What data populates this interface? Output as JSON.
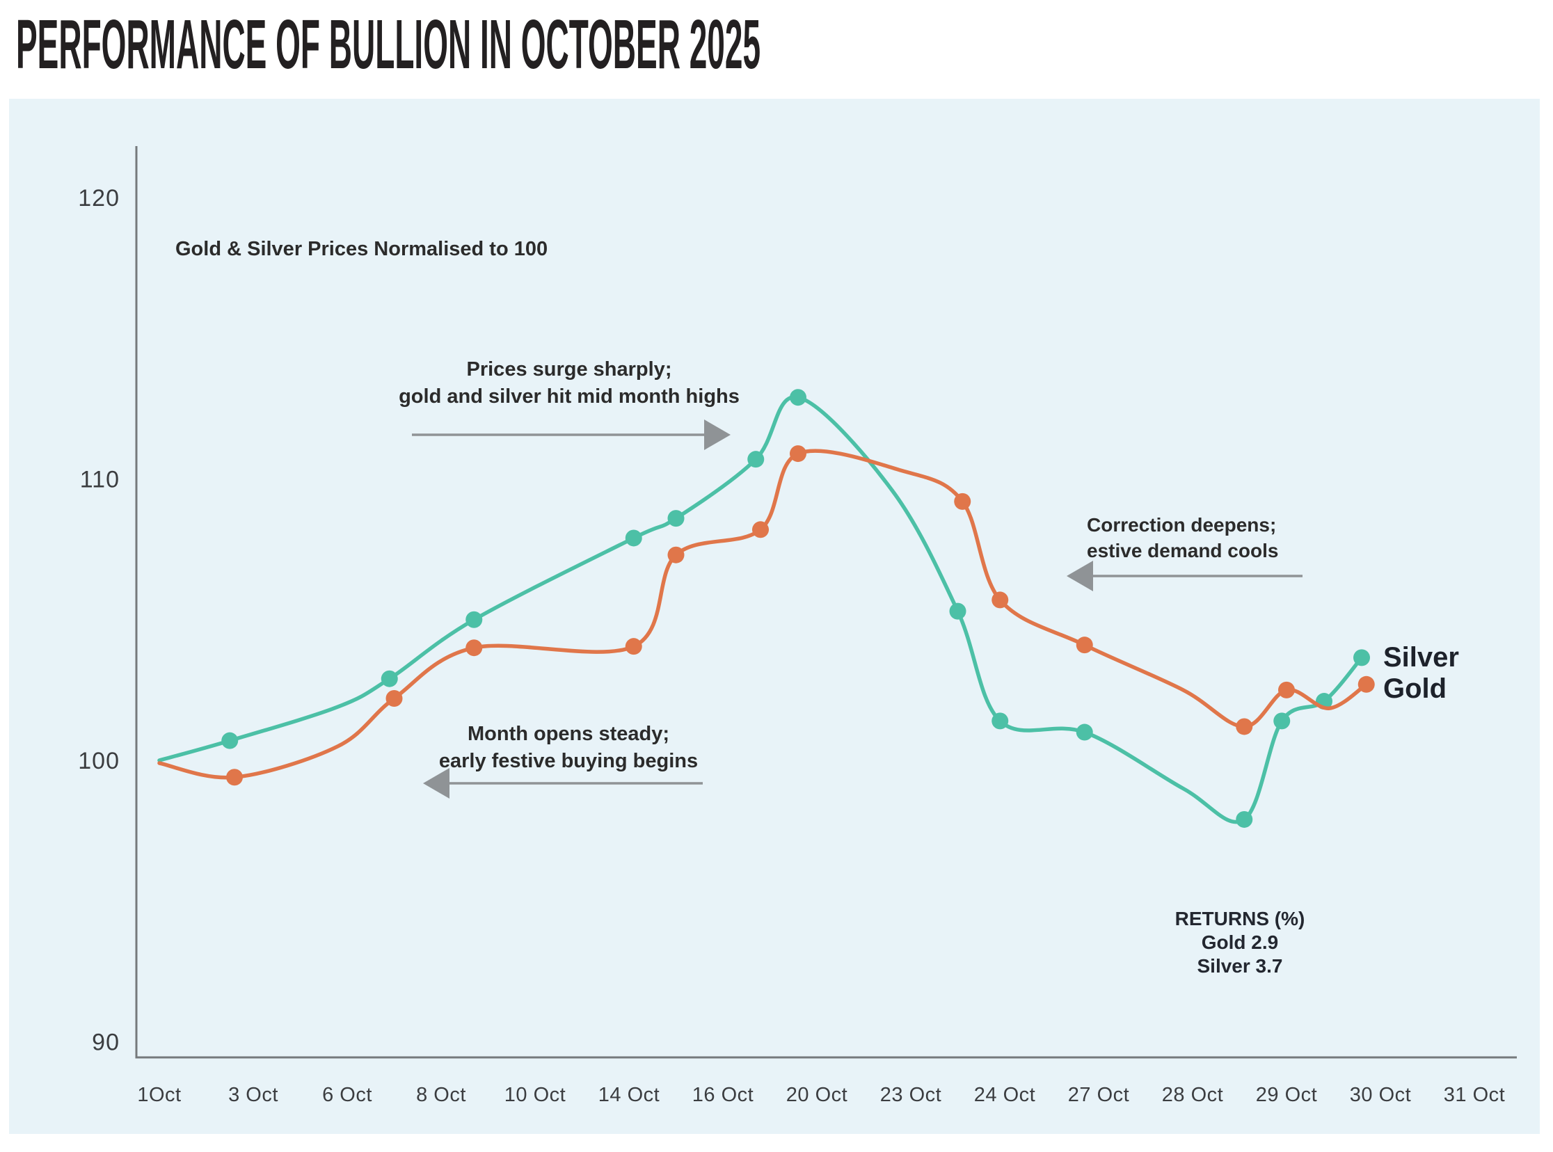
{
  "title": "PERFORMANCE OF BULLION IN OCTOBER 2025",
  "subtitle": "Gold & Silver Prices Normalised to 100",
  "colors": {
    "panel_bg": "#e8f3f8",
    "silver": "#4cc0a6",
    "gold": "#e0764a",
    "axis": "#75797c",
    "arrow": "#8f9396",
    "tick_text": "#3b3d40",
    "title_text": "#232021",
    "annotation_text": "#2b2b2b"
  },
  "annotations": {
    "surge": {
      "line1": "Prices surge sharply;",
      "line2": "gold and silver hit mid month highs",
      "arrow_direction": "right"
    },
    "month_open": {
      "line1": "Month opens steady;",
      "line2": "early festive buying begins",
      "arrow_direction": "left"
    },
    "correction": {
      "line1": "Correction deepens;",
      "line2": "estive demand cools",
      "arrow_direction": "left"
    }
  },
  "returns": {
    "heading": "RETURNS (%)",
    "gold_line": "Gold 2.9",
    "silver_line": "Silver 3.7"
  },
  "series_labels": {
    "silver": "Silver",
    "gold": "Gold"
  },
  "chart_data": {
    "type": "line",
    "title": "Gold & Silver Prices Normalised to 100",
    "xlabel": "",
    "ylabel": "",
    "x_tick_labels": [
      "1Oct",
      "3 Oct",
      "6 Oct",
      "8 Oct",
      "10 Oct",
      "14 Oct",
      "16 Oct",
      "20 Oct",
      "23 Oct",
      "24 Oct",
      "27 Oct",
      "28 Oct",
      "29 Oct",
      "30 Oct",
      "31 Oct"
    ],
    "y_ticks": [
      90,
      100,
      110,
      120
    ],
    "ylim": [
      88.5,
      122
    ],
    "grid": false,
    "legend_position": "right-end-of-line",
    "x_unit": "tick index: 0 = 1Oct ... 14 = 31 Oct (points may fall between ticks)",
    "point_format": "[x_index, value, marker_visible_0_or_1]",
    "series": [
      {
        "name": "Silver",
        "color": "#4cc0a6",
        "points": [
          [
            0,
            100.0,
            0
          ],
          [
            0.75,
            100.7,
            1
          ],
          [
            1.9,
            101.9,
            0
          ],
          [
            2.45,
            102.9,
            1
          ],
          [
            3.35,
            105.0,
            1
          ],
          [
            5.05,
            107.9,
            1
          ],
          [
            5.5,
            108.6,
            1
          ],
          [
            6.35,
            110.7,
            1
          ],
          [
            6.8,
            112.9,
            1
          ],
          [
            7.8,
            109.6,
            0
          ],
          [
            8.5,
            105.3,
            1
          ],
          [
            8.95,
            101.4,
            1
          ],
          [
            9.85,
            101.0,
            1
          ],
          [
            10.9,
            99.0,
            0
          ],
          [
            11.55,
            97.9,
            1
          ],
          [
            11.95,
            101.4,
            1
          ],
          [
            12.4,
            102.1,
            1
          ],
          [
            12.8,
            103.65,
            1
          ]
        ]
      },
      {
        "name": "Gold",
        "color": "#e0764a",
        "points": [
          [
            0,
            99.9,
            0
          ],
          [
            0.8,
            99.4,
            1
          ],
          [
            1.9,
            100.5,
            0
          ],
          [
            2.5,
            102.2,
            1
          ],
          [
            3.35,
            104.0,
            1
          ],
          [
            5.05,
            104.05,
            1
          ],
          [
            5.5,
            107.3,
            1
          ],
          [
            6.4,
            108.2,
            1
          ],
          [
            6.8,
            110.9,
            1
          ],
          [
            7.9,
            110.3,
            0
          ],
          [
            8.55,
            109.2,
            1
          ],
          [
            8.95,
            105.7,
            1
          ],
          [
            9.85,
            104.1,
            1
          ],
          [
            10.9,
            102.5,
            0
          ],
          [
            11.55,
            101.2,
            1
          ],
          [
            12.0,
            102.5,
            1
          ],
          [
            12.45,
            101.85,
            0
          ],
          [
            12.85,
            102.7,
            1
          ]
        ]
      }
    ],
    "returns_pct": {
      "gold": 2.9,
      "silver": 3.7
    }
  }
}
